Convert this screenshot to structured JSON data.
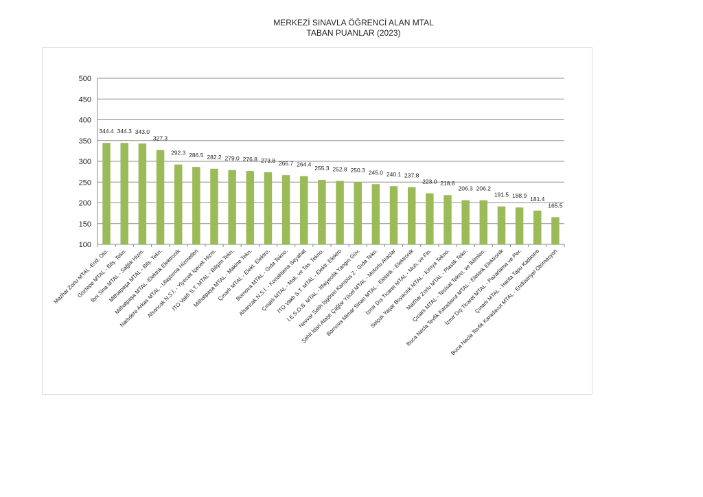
{
  "chart_data": {
    "type": "bar",
    "title_line1": "MERKEZİ SINAVLA ÖĞRENCİ ALAN MTAL",
    "title_line2": "TABAN PUANLAR (2023)",
    "xlabel": "",
    "ylabel": "",
    "ylim": [
      100,
      500
    ],
    "yticks": [
      100,
      150,
      200,
      250,
      300,
      350,
      400,
      450,
      500
    ],
    "grid": true,
    "bar_color": "#9bbb59",
    "categories": [
      "Mazhar Zorlu MTAL -End. Oto.",
      "Göztepe MTAL - Bilş. Tekn.",
      "İbni Sina MTAL - Sağlık Hizm.",
      "Mithatpaşa MTAL - Bilş. Tekn.",
      "Mithatpaşa MTAL -Elektrik Elektronik",
      "Narlıdere Arkas MTAL - Ulaştırma Hizmetleri",
      "Alsancak N.S.İ. - Yiyecek İçecek Hizm.",
      "İTO Vakfı S.T. MTAL - Bilişim Tekn.",
      "Mithatpaşa MTAL - Makine Tekn.",
      "Çınarlı MTAL - Elekt. Elektro.",
      "Bornova MTAL - Gıda Tekno.",
      "Alsancak N.S.İ. - Konaklama Seyahat",
      "Çınarlı MTAL - Mak. ve Tas. Tekno.",
      "İTO Vakfı S.T. MTAL - Elektr. Elektro",
      "İ.E.S.O.B. MTAL - İtfaiyecilik Yangın Güv.",
      "Nevvar Salih İşgören Kampüs 2 - Gıda Tekn.",
      "Şehit İdari Ataşe Çağlar Yücel MTAL - Motorlu Araçlar",
      "Bornova Mimar Sinan MTAL - Elektrik - Elektronik",
      "İzmir Dış Ticaret MTAL - Muh. ve Fin.",
      "Selçuk Yaşar Boyacılık MTAL - Kimya Tekno.",
      "Mazhar Zorlu MTAL - Plastik Tekn.",
      "Çınarlı MTAL - Tesisat Tekno. ve İklimlen.",
      "Buca Necla Tevfik Karadavut MTAL - Elektrik Elektronik",
      "İzmir Dış Ticaret MTAL - Pazarlama ve Per.",
      "Çınarlı MTAL - Harita Tapu Kadastro",
      "Buca Necla Tevfik Karadavut MTAL - Endüstriyel Otomasyon"
    ],
    "values": [
      344.4,
      344.3,
      343.0,
      327.3,
      292.3,
      286.5,
      282.2,
      279.0,
      276.8,
      273.8,
      266.7,
      264.4,
      255.3,
      252.8,
      250.3,
      245.0,
      240.1,
      237.8,
      223.0,
      218.6,
      206.3,
      206.2,
      191.5,
      188.9,
      181.4,
      165.5
    ],
    "value_labels": [
      "344.4",
      "344.3",
      "343.0",
      "327.3",
      "292.3",
      "286.5",
      "282.2",
      "279.0",
      "276.8",
      "273.8",
      "266.7",
      "264.4",
      "255.3",
      "252.8",
      "250.3",
      "245.0",
      "240.1",
      "237.8",
      "223.0",
      "218.6",
      "206.3",
      "206.2",
      "191.5",
      "188.9",
      "181.4",
      "165.5"
    ]
  }
}
